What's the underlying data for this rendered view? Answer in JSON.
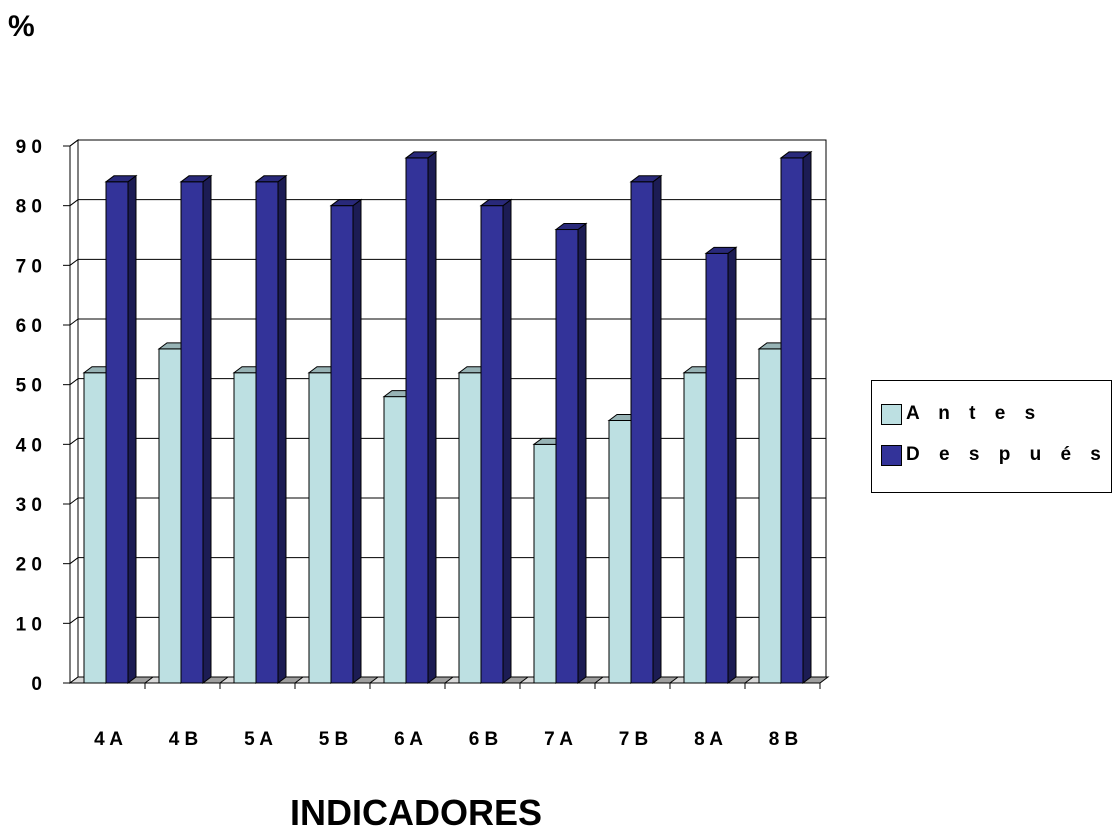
{
  "chart_data": {
    "type": "bar",
    "ylabel": "%",
    "xlabel": "INDICADORES",
    "ylim": [
      0,
      90
    ],
    "yticks": [
      "9 0",
      "8 0",
      "7 0",
      "6 0",
      "5 0",
      "4 0",
      "3 0",
      "2 0",
      "1 0",
      "0"
    ],
    "categories": [
      "4 A",
      "4 B",
      "5 A",
      "5 B",
      "6 A",
      "6 B",
      "7 A",
      "7 B",
      "8 A",
      "8 B"
    ],
    "series": [
      {
        "name": "A n t e s",
        "color": "#bde0e2",
        "values": [
          52,
          56,
          52,
          52,
          48,
          52,
          40,
          44,
          52,
          56
        ]
      },
      {
        "name": "D e s p u é s",
        "color": "#333399",
        "values": [
          84,
          84,
          84,
          80,
          88,
          80,
          76,
          84,
          72,
          88
        ]
      }
    ],
    "grid": true,
    "legend": "right"
  }
}
